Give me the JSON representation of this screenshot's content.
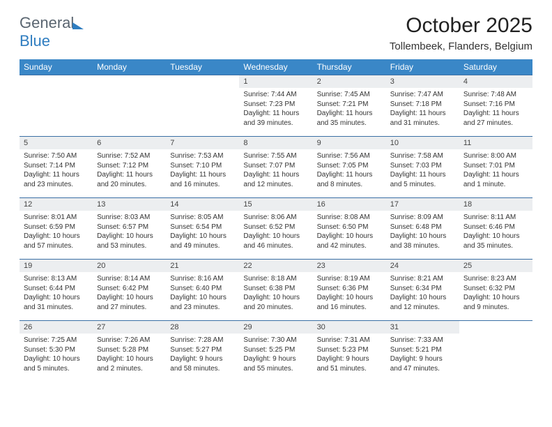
{
  "brand": {
    "part1": "General",
    "part2": "Blue"
  },
  "title": "October 2025",
  "location": "Tollembeek, Flanders, Belgium",
  "colors": {
    "header_bg": "#3a87c7",
    "header_fg": "#ffffff",
    "daynum_bg": "#eceef0",
    "row_border": "#3a6fa5",
    "brand_gray": "#5a6570",
    "brand_blue": "#2f7dc0"
  },
  "weekdays": [
    "Sunday",
    "Monday",
    "Tuesday",
    "Wednesday",
    "Thursday",
    "Friday",
    "Saturday"
  ],
  "weeks": [
    [
      {
        "n": "",
        "sr": "",
        "ss": "",
        "dl": "",
        "empty": true
      },
      {
        "n": "",
        "sr": "",
        "ss": "",
        "dl": "",
        "empty": true
      },
      {
        "n": "",
        "sr": "",
        "ss": "",
        "dl": "",
        "empty": true
      },
      {
        "n": "1",
        "sr": "Sunrise: 7:44 AM",
        "ss": "Sunset: 7:23 PM",
        "dl": "Daylight: 11 hours and 39 minutes."
      },
      {
        "n": "2",
        "sr": "Sunrise: 7:45 AM",
        "ss": "Sunset: 7:21 PM",
        "dl": "Daylight: 11 hours and 35 minutes."
      },
      {
        "n": "3",
        "sr": "Sunrise: 7:47 AM",
        "ss": "Sunset: 7:18 PM",
        "dl": "Daylight: 11 hours and 31 minutes."
      },
      {
        "n": "4",
        "sr": "Sunrise: 7:48 AM",
        "ss": "Sunset: 7:16 PM",
        "dl": "Daylight: 11 hours and 27 minutes."
      }
    ],
    [
      {
        "n": "5",
        "sr": "Sunrise: 7:50 AM",
        "ss": "Sunset: 7:14 PM",
        "dl": "Daylight: 11 hours and 23 minutes."
      },
      {
        "n": "6",
        "sr": "Sunrise: 7:52 AM",
        "ss": "Sunset: 7:12 PM",
        "dl": "Daylight: 11 hours and 20 minutes."
      },
      {
        "n": "7",
        "sr": "Sunrise: 7:53 AM",
        "ss": "Sunset: 7:10 PM",
        "dl": "Daylight: 11 hours and 16 minutes."
      },
      {
        "n": "8",
        "sr": "Sunrise: 7:55 AM",
        "ss": "Sunset: 7:07 PM",
        "dl": "Daylight: 11 hours and 12 minutes."
      },
      {
        "n": "9",
        "sr": "Sunrise: 7:56 AM",
        "ss": "Sunset: 7:05 PM",
        "dl": "Daylight: 11 hours and 8 minutes."
      },
      {
        "n": "10",
        "sr": "Sunrise: 7:58 AM",
        "ss": "Sunset: 7:03 PM",
        "dl": "Daylight: 11 hours and 5 minutes."
      },
      {
        "n": "11",
        "sr": "Sunrise: 8:00 AM",
        "ss": "Sunset: 7:01 PM",
        "dl": "Daylight: 11 hours and 1 minute."
      }
    ],
    [
      {
        "n": "12",
        "sr": "Sunrise: 8:01 AM",
        "ss": "Sunset: 6:59 PM",
        "dl": "Daylight: 10 hours and 57 minutes."
      },
      {
        "n": "13",
        "sr": "Sunrise: 8:03 AM",
        "ss": "Sunset: 6:57 PM",
        "dl": "Daylight: 10 hours and 53 minutes."
      },
      {
        "n": "14",
        "sr": "Sunrise: 8:05 AM",
        "ss": "Sunset: 6:54 PM",
        "dl": "Daylight: 10 hours and 49 minutes."
      },
      {
        "n": "15",
        "sr": "Sunrise: 8:06 AM",
        "ss": "Sunset: 6:52 PM",
        "dl": "Daylight: 10 hours and 46 minutes."
      },
      {
        "n": "16",
        "sr": "Sunrise: 8:08 AM",
        "ss": "Sunset: 6:50 PM",
        "dl": "Daylight: 10 hours and 42 minutes."
      },
      {
        "n": "17",
        "sr": "Sunrise: 8:09 AM",
        "ss": "Sunset: 6:48 PM",
        "dl": "Daylight: 10 hours and 38 minutes."
      },
      {
        "n": "18",
        "sr": "Sunrise: 8:11 AM",
        "ss": "Sunset: 6:46 PM",
        "dl": "Daylight: 10 hours and 35 minutes."
      }
    ],
    [
      {
        "n": "19",
        "sr": "Sunrise: 8:13 AM",
        "ss": "Sunset: 6:44 PM",
        "dl": "Daylight: 10 hours and 31 minutes."
      },
      {
        "n": "20",
        "sr": "Sunrise: 8:14 AM",
        "ss": "Sunset: 6:42 PM",
        "dl": "Daylight: 10 hours and 27 minutes."
      },
      {
        "n": "21",
        "sr": "Sunrise: 8:16 AM",
        "ss": "Sunset: 6:40 PM",
        "dl": "Daylight: 10 hours and 23 minutes."
      },
      {
        "n": "22",
        "sr": "Sunrise: 8:18 AM",
        "ss": "Sunset: 6:38 PM",
        "dl": "Daylight: 10 hours and 20 minutes."
      },
      {
        "n": "23",
        "sr": "Sunrise: 8:19 AM",
        "ss": "Sunset: 6:36 PM",
        "dl": "Daylight: 10 hours and 16 minutes."
      },
      {
        "n": "24",
        "sr": "Sunrise: 8:21 AM",
        "ss": "Sunset: 6:34 PM",
        "dl": "Daylight: 10 hours and 12 minutes."
      },
      {
        "n": "25",
        "sr": "Sunrise: 8:23 AM",
        "ss": "Sunset: 6:32 PM",
        "dl": "Daylight: 10 hours and 9 minutes."
      }
    ],
    [
      {
        "n": "26",
        "sr": "Sunrise: 7:25 AM",
        "ss": "Sunset: 5:30 PM",
        "dl": "Daylight: 10 hours and 5 minutes."
      },
      {
        "n": "27",
        "sr": "Sunrise: 7:26 AM",
        "ss": "Sunset: 5:28 PM",
        "dl": "Daylight: 10 hours and 2 minutes."
      },
      {
        "n": "28",
        "sr": "Sunrise: 7:28 AM",
        "ss": "Sunset: 5:27 PM",
        "dl": "Daylight: 9 hours and 58 minutes."
      },
      {
        "n": "29",
        "sr": "Sunrise: 7:30 AM",
        "ss": "Sunset: 5:25 PM",
        "dl": "Daylight: 9 hours and 55 minutes."
      },
      {
        "n": "30",
        "sr": "Sunrise: 7:31 AM",
        "ss": "Sunset: 5:23 PM",
        "dl": "Daylight: 9 hours and 51 minutes."
      },
      {
        "n": "31",
        "sr": "Sunrise: 7:33 AM",
        "ss": "Sunset: 5:21 PM",
        "dl": "Daylight: 9 hours and 47 minutes."
      },
      {
        "n": "",
        "sr": "",
        "ss": "",
        "dl": "",
        "empty": true
      }
    ]
  ]
}
